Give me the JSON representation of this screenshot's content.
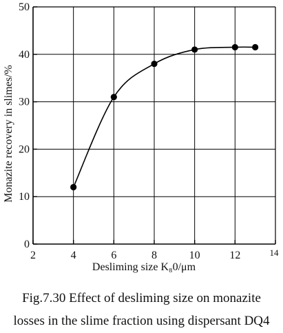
{
  "chart_data": {
    "type": "line",
    "title": "",
    "xlabel": "Desliming size K₈0/μm",
    "ylabel": "Monazite recovery in slimes/%",
    "xlim": [
      2,
      14
    ],
    "ylim": [
      0,
      50
    ],
    "x_ticks": [
      "2",
      "4",
      "6",
      "8",
      "10",
      "12",
      "14"
    ],
    "y_ticks": [
      "0",
      "10",
      "20",
      "30",
      "40",
      "50"
    ],
    "grid": true,
    "series": [
      {
        "x": [
          4,
          6,
          8,
          10,
          12,
          13
        ],
        "y": [
          12,
          31,
          38,
          41,
          41.5,
          41.5
        ]
      }
    ],
    "colors": {
      "line": "#000000",
      "grid": "#000000",
      "marker": "#000000"
    }
  },
  "caption": {
    "line1": "Fig.7.30 Effect of desliming size on monazite",
    "line2": "losses in the slime fraction using dispersant DQ4"
  }
}
